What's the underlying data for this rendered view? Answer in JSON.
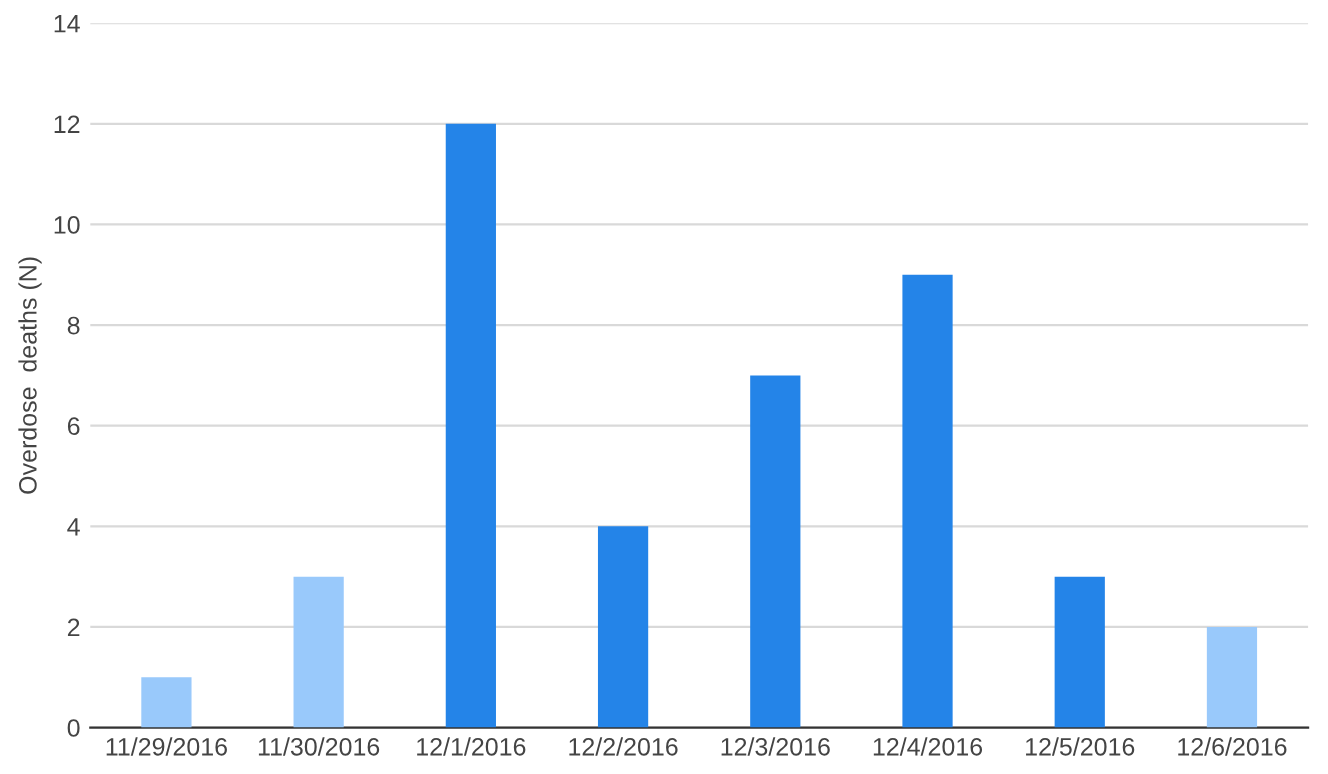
{
  "chart_data": {
    "type": "bar",
    "ylabel": "Overdose  deaths (N)",
    "categories": [
      "11/29/2016",
      "11/30/2016",
      "12/1/2016",
      "12/2/2016",
      "12/3/2016",
      "12/4/2016",
      "12/5/2016",
      "12/6/2016"
    ],
    "values": [
      1,
      3,
      12,
      4,
      7,
      9,
      3,
      2
    ],
    "colors": [
      "#99c9fb",
      "#99c9fb",
      "#2484e8",
      "#2484e8",
      "#2484e8",
      "#2484e8",
      "#2484e8",
      "#99c9fb"
    ],
    "ylim": [
      0,
      14
    ],
    "yticks": [
      0,
      2,
      4,
      6,
      8,
      10,
      12,
      14
    ],
    "grid": "y"
  }
}
